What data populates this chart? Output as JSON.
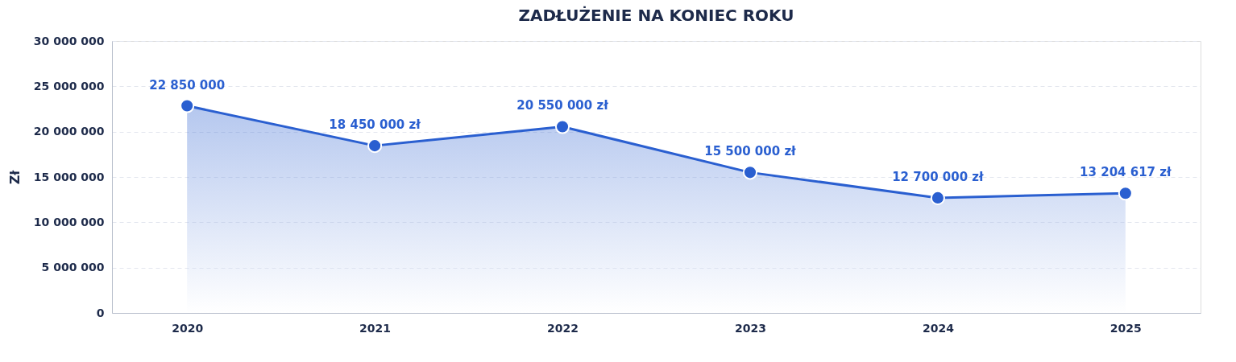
{
  "chart_data": {
    "type": "area",
    "title": "ZADŁUŻENIE NA KONIEC ROKU",
    "ylabel": "Zł",
    "categories": [
      "2020",
      "2021",
      "2022",
      "2023",
      "2024",
      "2025"
    ],
    "series": [
      {
        "color": "#2a5fd0",
        "values": [
          22850000,
          18450000,
          20550000,
          15500000,
          12700000,
          13204617
        ],
        "value_labels": [
          "22 850 000",
          "18 450 000 zł",
          "20 550 000 zł",
          "15 500 000 zł",
          "12 700 000 zł",
          "13 204 617 zł"
        ]
      }
    ],
    "ylim": [
      0,
      30000000
    ],
    "yticks": [
      {
        "value": 0,
        "label": "0"
      },
      {
        "value": 5000000,
        "label": "5 000 000"
      },
      {
        "value": 10000000,
        "label": "10 000 000"
      },
      {
        "value": 15000000,
        "label": "15 000 000"
      },
      {
        "value": 20000000,
        "label": "20 000 000"
      },
      {
        "value": 25000000,
        "label": "25 000 000"
      },
      {
        "value": 30000000,
        "label": "30 000 000"
      }
    ],
    "grid": "y",
    "marker": "circle",
    "line_style": "solid"
  }
}
